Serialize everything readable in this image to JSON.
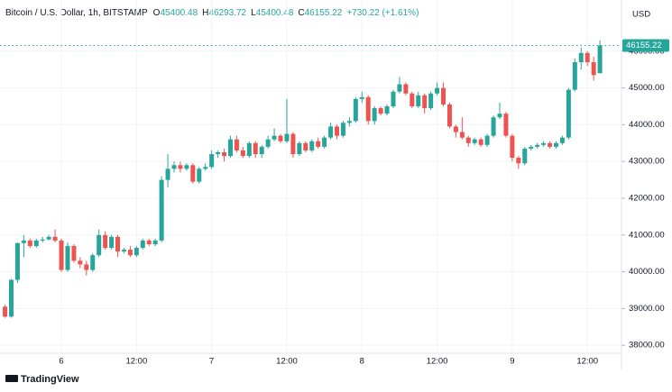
{
  "chart_data": {
    "type": "candlestick",
    "title": "Bitcoin / U.S. Dollar, 1h, BITSTAMP",
    "ohlc_labels": [
      "O",
      "H",
      "L",
      "C"
    ],
    "change": "+730.22 (+1.61%)",
    "currency": "USD",
    "brand": "TradingView",
    "up_color": "#26a69a",
    "down_color": "#ef5350",
    "grid": true,
    "ylim": [
      37784,
      47392
    ],
    "yticks": [
      {
        "value": 38000,
        "label": "38000.00"
      },
      {
        "value": 39000,
        "label": "39000.00"
      },
      {
        "value": 40000,
        "label": "40000.00"
      },
      {
        "value": 41000,
        "label": "41000.00"
      },
      {
        "value": 42000,
        "label": "42000.00"
      },
      {
        "value": 43000,
        "label": "43000.00"
      },
      {
        "value": 44000,
        "label": "44000.00"
      },
      {
        "value": 45000,
        "label": "45000.00"
      },
      {
        "value": 46000,
        "label": "46000.00"
      }
    ],
    "xlim": [
      -0.8,
      98.3
    ],
    "xticks": [
      {
        "value": 9,
        "label": "6"
      },
      {
        "value": 21,
        "label": "12:00"
      },
      {
        "value": 33,
        "label": "7"
      },
      {
        "value": 45,
        "label": "12:00"
      },
      {
        "value": 57,
        "label": "8"
      },
      {
        "value": 69,
        "label": "12:00"
      },
      {
        "value": 81,
        "label": "9"
      },
      {
        "value": 93,
        "label": "12:00"
      }
    ],
    "open": [
      39050,
      38780,
      39780,
      40780,
      40850,
      40700,
      40850,
      40880,
      40950,
      40850,
      40050,
      40700,
      40300,
      40200,
      40050,
      40450,
      41000,
      40650,
      40950,
      40550,
      40600,
      40450,
      40650,
      40850,
      40750,
      40850,
      42500,
      42800,
      42900,
      42800,
      42900,
      42450,
      42800,
      42850,
      43200,
      43250,
      43150,
      43600,
      43300,
      43150,
      43500,
      43200,
      43400,
      43600,
      43700,
      43550,
      43750,
      43200,
      43500,
      43300,
      43550,
      43400,
      43650,
      43950,
      43700,
      44050,
      44100,
      44700,
      44750,
      44100,
      44450,
      44300,
      44500,
      44900,
      45100,
      44850,
      44500,
      44800,
      44450,
      44850,
      45000,
      44550,
      43950,
      43800,
      43650,
      43500,
      43600,
      43450,
      43700,
      44200,
      44300,
      43700,
      43100,
      42950,
      43350,
      43400,
      43450,
      43500,
      43400,
      43500,
      43650,
      44950,
      45700,
      45950,
      45700,
      45400.48
    ],
    "high": [
      39100,
      39800,
      40800,
      41000,
      40900,
      40900,
      40950,
      41000,
      41150,
      40900,
      40800,
      40750,
      40400,
      40300,
      40500,
      41150,
      41100,
      41000,
      41000,
      40650,
      40700,
      40700,
      40900,
      40900,
      40900,
      42600,
      43200,
      43000,
      43000,
      42950,
      42950,
      42850,
      42950,
      43300,
      43300,
      43350,
      43700,
      43700,
      43400,
      43550,
      43550,
      43450,
      43700,
      43900,
      43750,
      44700,
      43800,
      43550,
      43550,
      43600,
      43650,
      43700,
      44050,
      44000,
      44100,
      44200,
      44750,
      44900,
      44800,
      44500,
      44500,
      44550,
      44950,
      45300,
      45150,
      44900,
      44900,
      44850,
      44900,
      45150,
      45150,
      44600,
      44000,
      44200,
      43700,
      43650,
      43650,
      43750,
      44250,
      44600,
      44350,
      43750,
      43150,
      43400,
      43450,
      43500,
      43550,
      43550,
      43550,
      43700,
      45000,
      45800,
      46100,
      46000,
      45850,
      46293.72
    ],
    "low": [
      38750,
      38750,
      39700,
      40400,
      40650,
      40650,
      40800,
      40850,
      40800,
      40000,
      40000,
      40250,
      40100,
      39900,
      40000,
      40400,
      40600,
      40600,
      40400,
      40500,
      40400,
      40400,
      40600,
      40700,
      40700,
      40800,
      42300,
      42700,
      42700,
      42750,
      42400,
      42400,
      42750,
      42800,
      43100,
      43000,
      43100,
      43250,
      43100,
      43100,
      43100,
      43100,
      43350,
      43550,
      43500,
      43500,
      43100,
      43150,
      43250,
      43250,
      43350,
      43350,
      43600,
      43600,
      43650,
      43950,
      44050,
      44600,
      44000,
      44000,
      44250,
      44250,
      44450,
      44850,
      44800,
      44450,
      44450,
      44300,
      44400,
      44800,
      44500,
      43900,
      43650,
      43600,
      43400,
      43450,
      43400,
      43400,
      43650,
      44150,
      43650,
      43000,
      42800,
      42900,
      43300,
      43350,
      43400,
      43350,
      43350,
      43450,
      43600,
      44900,
      45500,
      45600,
      45200,
      45400.48
    ],
    "close": [
      38780,
      39780,
      40780,
      40850,
      40700,
      40850,
      40880,
      40950,
      40850,
      40050,
      40700,
      40300,
      40200,
      40050,
      40450,
      41000,
      40650,
      40950,
      40550,
      40600,
      40450,
      40650,
      40850,
      40750,
      40850,
      42500,
      42800,
      42900,
      42800,
      42900,
      42450,
      42800,
      42850,
      43200,
      43250,
      43150,
      43600,
      43300,
      43150,
      43500,
      43200,
      43400,
      43600,
      43700,
      43550,
      43750,
      43200,
      43500,
      43300,
      43550,
      43400,
      43650,
      43950,
      43700,
      44050,
      44100,
      44700,
      44750,
      44100,
      44450,
      44300,
      44500,
      44900,
      45100,
      44850,
      44500,
      44800,
      44450,
      44850,
      45000,
      44550,
      43950,
      43800,
      43650,
      43500,
      43600,
      43450,
      43700,
      44200,
      44300,
      43700,
      43100,
      42950,
      43350,
      43400,
      43450,
      43500,
      43400,
      43500,
      43650,
      44950,
      45700,
      45950,
      45700,
      45350,
      46155.22
    ]
  }
}
